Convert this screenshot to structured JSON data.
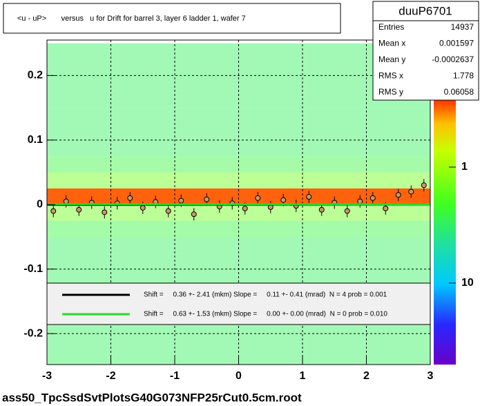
{
  "chart_data": {
    "type": "heatmap",
    "title": "<u - uP>       versus   u for Drift for barrel 3, layer 6 ladder 1, wafer 7",
    "footer": "ass50_TpcSsdSvtPlotsG40G073NFP25rCut0.5cm.root",
    "xlim": [
      -3,
      3
    ],
    "ylim": [
      -0.248,
      0.255
    ],
    "xticks": [
      -3,
      -2,
      -1,
      0,
      1,
      2,
      3
    ],
    "yticks": [
      -0.2,
      -0.1,
      0,
      0.1,
      0.2
    ],
    "grid": true,
    "ybins": [
      -0.25,
      -0.225,
      -0.2,
      -0.175,
      -0.15,
      -0.125,
      -0.1,
      -0.075,
      -0.05,
      -0.025,
      0,
      0.025,
      0.05,
      0.075,
      0.1,
      0.125,
      0.15,
      0.175,
      0.2,
      0.225,
      0.25
    ],
    "counts": [
      3,
      3,
      3,
      3,
      3,
      3,
      3,
      3,
      2.5,
      1.5,
      0.3,
      1.5,
      2.5,
      3,
      3,
      3,
      3,
      3,
      3,
      3
    ],
    "zlim": [
      50.4,
      0.247
    ],
    "zticks": [
      1,
      10
    ],
    "profile": {
      "color": "#c89a6a",
      "x": [
        -2.9,
        -2.7,
        -2.5,
        -2.3,
        -2.1,
        -1.9,
        -1.7,
        -1.5,
        -1.3,
        -1.1,
        -0.9,
        -0.7,
        -0.5,
        -0.3,
        -0.1,
        0.1,
        0.3,
        0.5,
        0.7,
        0.9,
        1.1,
        1.3,
        1.5,
        1.7,
        1.9,
        2.1,
        2.3,
        2.5,
        2.7,
        2.9
      ],
      "values": [
        -0.01,
        0.005,
        -0.008,
        0.003,
        -0.012,
        0.002,
        0.01,
        -0.005,
        0.004,
        -0.01,
        0.006,
        -0.015,
        0.008,
        -0.003,
        0.002,
        -0.006,
        0.01,
        -0.004,
        0.007,
        -0.002,
        0.012,
        -0.008,
        0.003,
        -0.01,
        0.005,
        0.01,
        -0.006,
        0.015,
        0.02,
        0.03
      ]
    },
    "fits": [
      {
        "name": "Shift =     0.36 +- 2.41 (mkm) Slope =     0.11 +- 0.41 (mrad)  N = 4 prob = 0.001",
        "color": "#000000",
        "values": [
          -0.0003,
          0.0003
        ]
      },
      {
        "name": "Shift =     0.63 +- 1.53 (mkm) Slope =     0.00 +- 0.00 (mrad)  N = 0 prob = 0.010",
        "color": "#22dd22",
        "values": [
          0.0006,
          0.0006
        ]
      }
    ],
    "stats": {
      "name": "duuP6701",
      "rows": [
        {
          "label": "Entries",
          "value": "14937"
        },
        {
          "label": "Mean x",
          "value": "0.001597"
        },
        {
          "label": "Mean y",
          "value": "-0.0002637"
        },
        {
          "label": "RMS x",
          "value": "1.778"
        },
        {
          "label": "RMS y",
          "value": "0.06058"
        }
      ]
    }
  }
}
